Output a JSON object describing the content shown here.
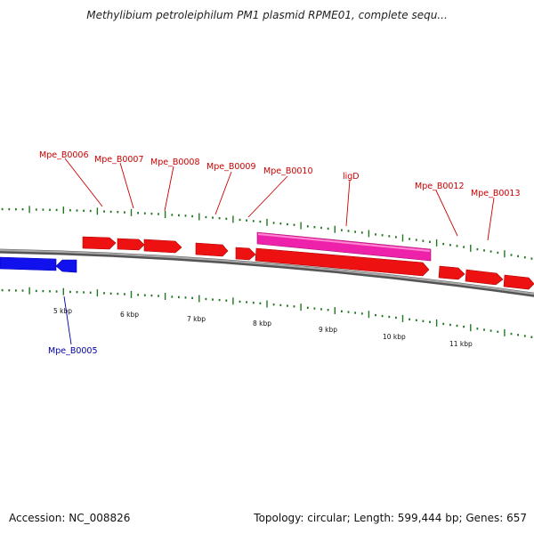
{
  "title": "Methylibium petroleiphilum PM1 plasmid RPME01, complete sequ...",
  "footer": {
    "accession": "Accession: NC_008826",
    "stats": "Topology: circular; Length: 599,444 bp; Genes: 657"
  },
  "colors": {
    "forward_gene": "#ee1111",
    "reverse_gene": "#1111ee",
    "highlight_gene": "#ee22aa",
    "backbone": "#888888",
    "ticks": "#227722",
    "forward_label": "#cc0000",
    "reverse_label": "#0000aa"
  },
  "kbp_labels": [
    "5 kbp",
    "6 kbp",
    "7 kbp",
    "8 kbp",
    "9 kbp",
    "10 kbp",
    "11 kbp"
  ],
  "gene_labels": [
    {
      "text": "Mpe_B0006",
      "strand": "forward"
    },
    {
      "text": "Mpe_B0007",
      "strand": "forward"
    },
    {
      "text": "Mpe_B0008",
      "strand": "forward"
    },
    {
      "text": "Mpe_B0009",
      "strand": "forward"
    },
    {
      "text": "Mpe_B0010",
      "strand": "forward"
    },
    {
      "text": "ligD",
      "strand": "forward"
    },
    {
      "text": "Mpe_B0012",
      "strand": "forward"
    },
    {
      "text": "Mpe_B0013",
      "strand": "forward"
    },
    {
      "text": "Mpe_B0005",
      "strand": "reverse"
    }
  ]
}
